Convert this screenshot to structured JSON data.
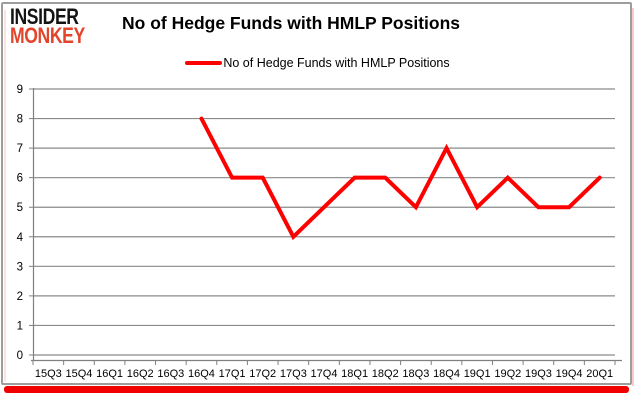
{
  "branding": {
    "logo_line1": "INSIDER",
    "logo_line2": "MONKEY"
  },
  "header": {
    "title": "No of Hedge Funds with HMLP Positions"
  },
  "legend": {
    "label": "No of Hedge Funds with HMLP Positions"
  },
  "colors": {
    "series_red": "#fe0000",
    "logo_red": "#e2452c",
    "logo_black": "#141414",
    "grid_gray": "#8a8a8a",
    "axis_gray": "#808080",
    "card_border_gray": "#9d9d9d",
    "shadow_red": "#f20000",
    "shadow_pink": "#f6cdc9",
    "label_black": "#000000"
  },
  "chart_data": {
    "type": "line",
    "title": "No of Hedge Funds with HMLP Positions",
    "xlabel": "",
    "ylabel": "",
    "ylim": [
      0,
      9
    ],
    "ytick_step": 1,
    "grid": true,
    "legend_position": "top",
    "categories": [
      "15Q3",
      "15Q4",
      "16Q1",
      "16Q2",
      "16Q3",
      "16Q4",
      "17Q1",
      "17Q2",
      "17Q3",
      "17Q4",
      "18Q1",
      "18Q2",
      "18Q3",
      "18Q4",
      "19Q1",
      "19Q2",
      "19Q3",
      "19Q4",
      "20Q1"
    ],
    "series": [
      {
        "name": "No of Hedge Funds with HMLP Positions",
        "color": "#fe0000",
        "values": [
          null,
          null,
          null,
          null,
          null,
          8,
          6,
          6,
          4,
          5,
          6,
          6,
          5,
          7,
          5,
          6,
          5,
          5,
          6
        ]
      }
    ]
  }
}
